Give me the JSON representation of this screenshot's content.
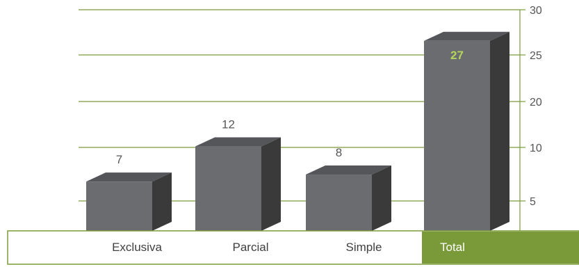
{
  "chart_data": {
    "type": "bar",
    "categories": [
      "Exclusiva",
      "Parcial",
      "Simple",
      "Total"
    ],
    "values": [
      7,
      12,
      8,
      27
    ],
    "data_labels": [
      "7",
      "12",
      "8",
      "27"
    ],
    "highlight_category": "Total",
    "y_tick_labels": [
      "30",
      "25",
      "20",
      "10",
      "5"
    ],
    "y_axis_position": "right",
    "grid": true,
    "colors": {
      "gridline": "#7a9a3a",
      "bar_front": "#6b6c70",
      "bar_side": "#3a3a3a",
      "bar_top": "#55565a",
      "highlight_fill": "#7a9a3a",
      "highlight_label": "#b7d45a",
      "table_border": "#7a9a3a"
    }
  }
}
